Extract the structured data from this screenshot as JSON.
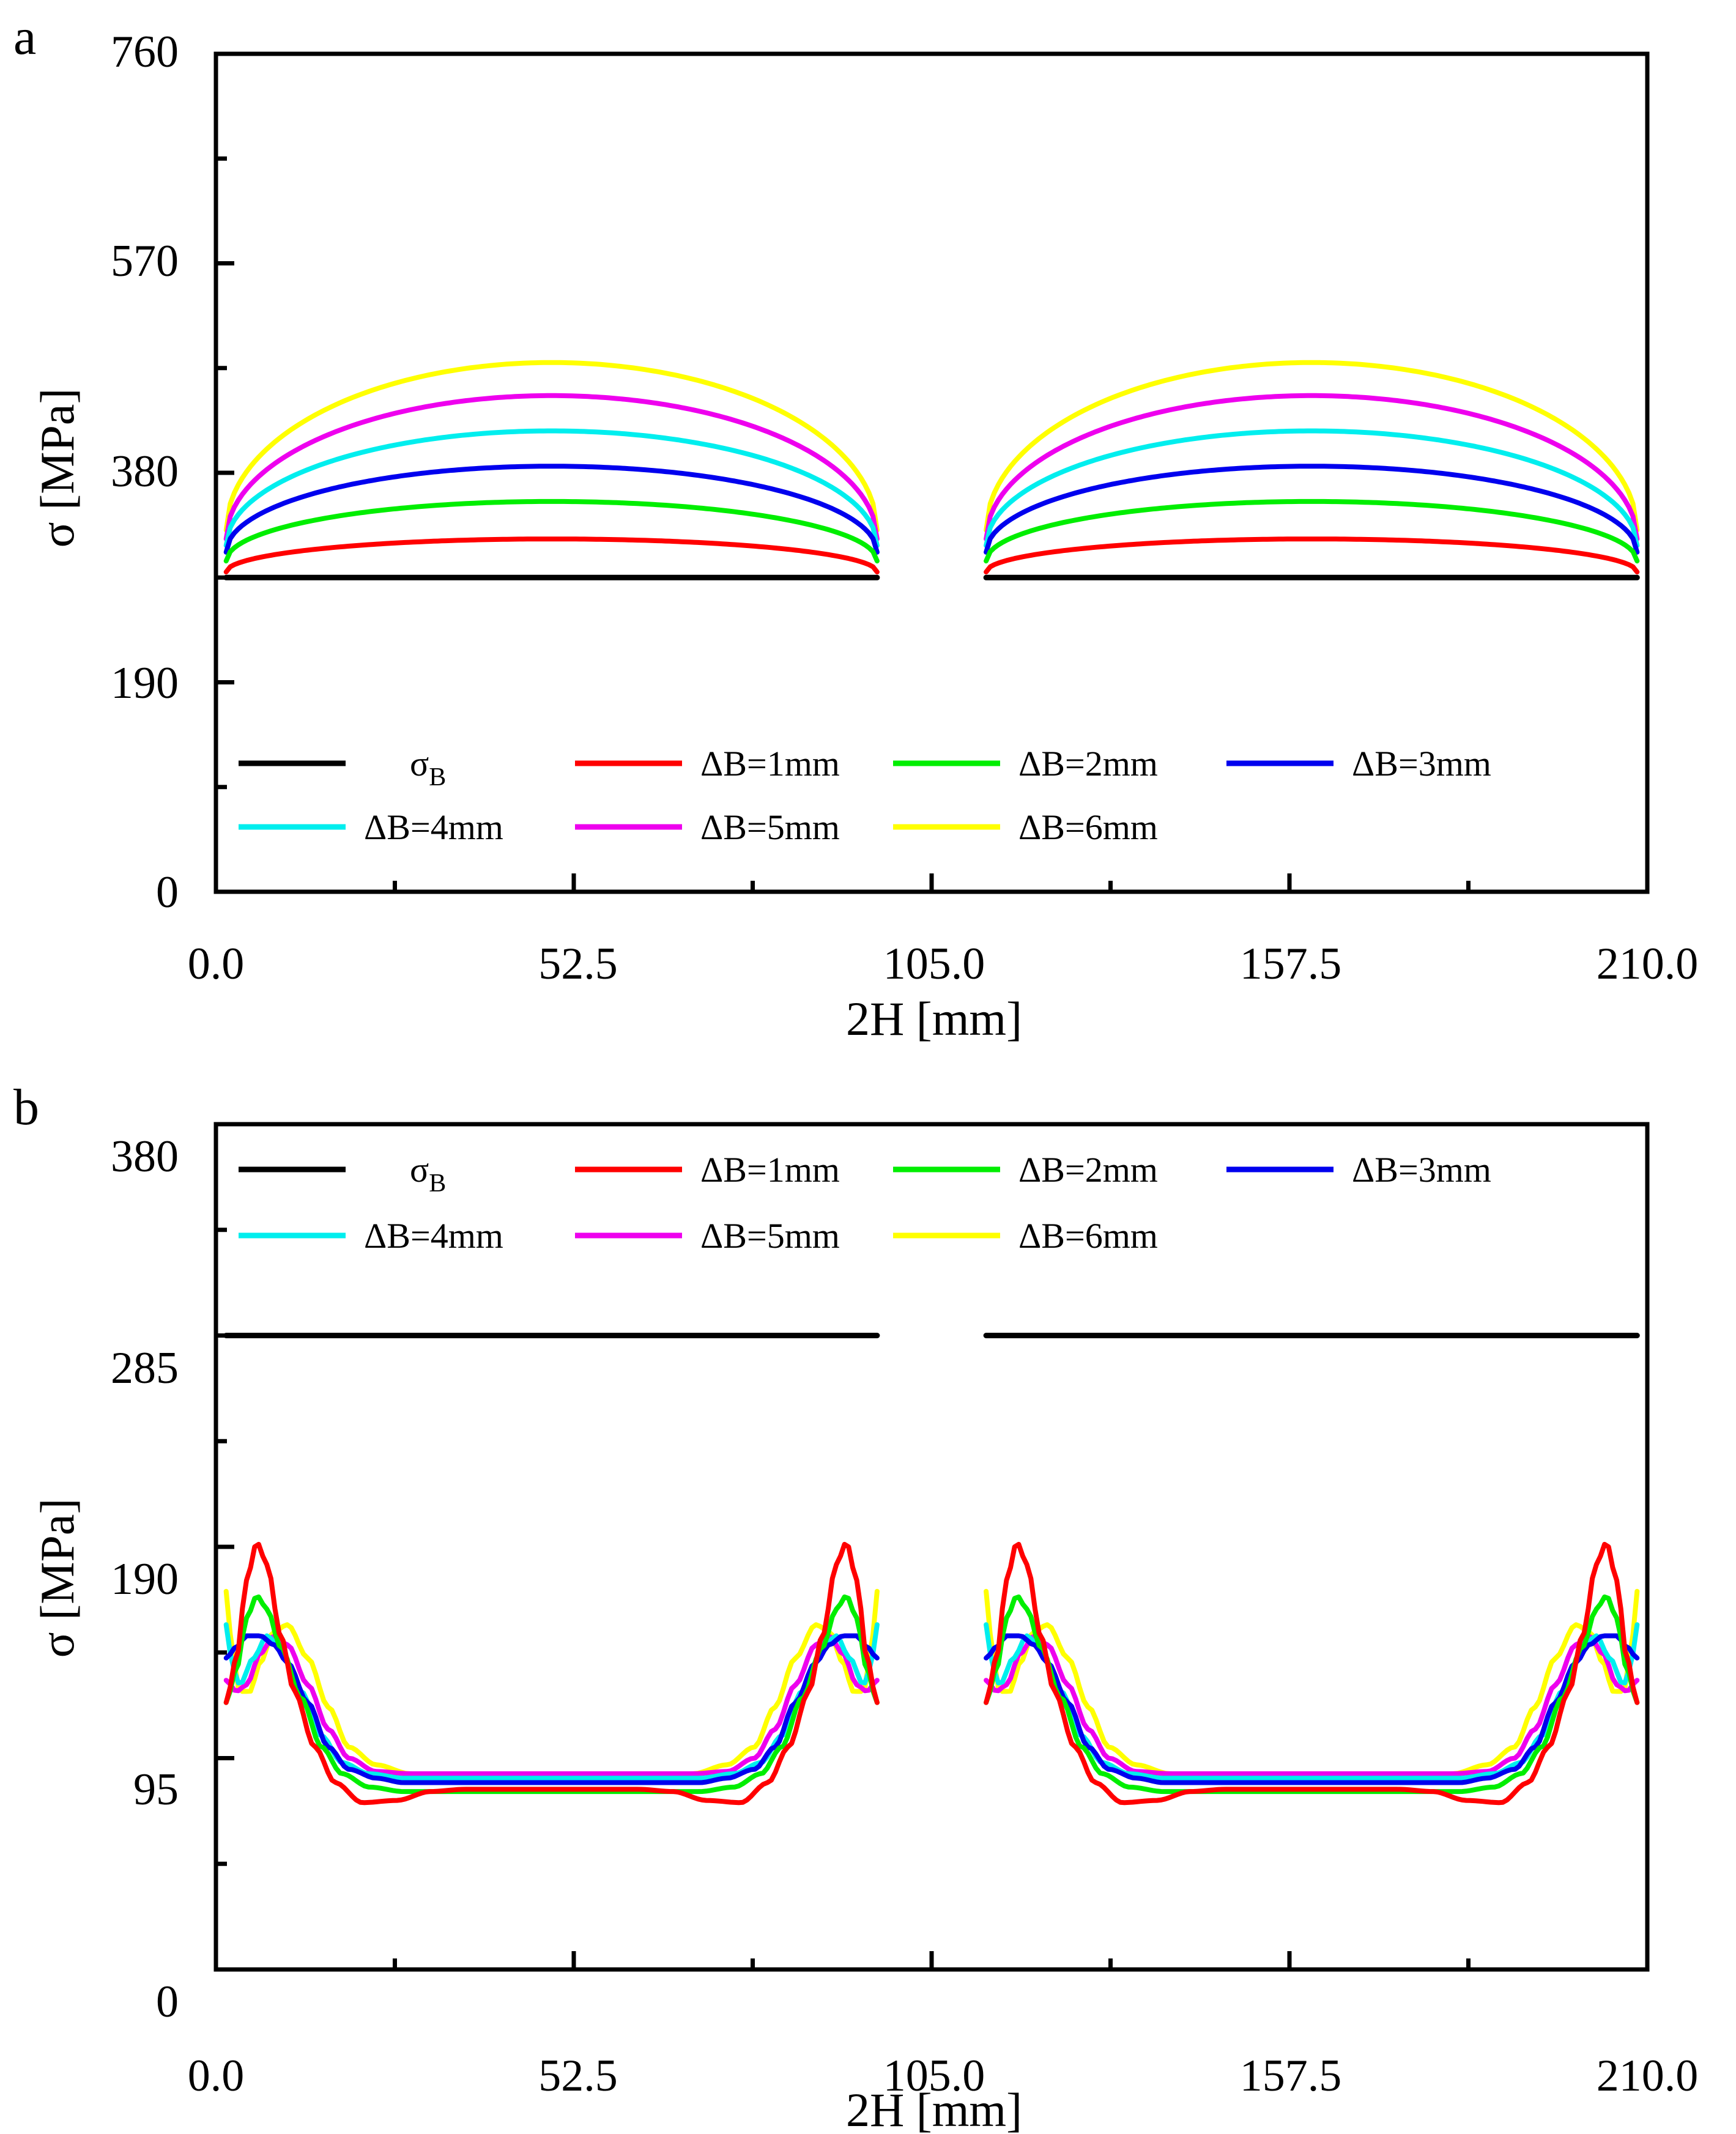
{
  "chart_data": [
    {
      "panel_label": "a",
      "type": "line",
      "xlabel": "2H [mm]",
      "ylabel": "σ [MPa]",
      "xlim": [
        0,
        210
      ],
      "ylim": [
        0,
        760
      ],
      "xticks": [
        "0.0",
        "52.5",
        "105.0",
        "157.5",
        "210.0"
      ],
      "yticks": [
        "0",
        "190",
        "380",
        "570",
        "760"
      ],
      "legend": {
        "position": "bottom",
        "entries": [
          {
            "label": "σ",
            "sub": "B",
            "color": "#000000"
          },
          {
            "label": "ΔB=1mm",
            "color": "#ff0000"
          },
          {
            "label": "ΔB=2mm",
            "color": "#00ee00"
          },
          {
            "label": "ΔB=3mm",
            "color": "#0000ee"
          },
          {
            "label": "ΔB=4mm",
            "color": "#00eeee"
          },
          {
            "label": "ΔB=5mm",
            "color": "#ee00ee"
          },
          {
            "label": "ΔB=6mm",
            "color": "#ffff00"
          }
        ]
      },
      "segments": [
        [
          1.5,
          97
        ],
        [
          113,
          208.5
        ]
      ],
      "series": [
        {
          "name": "σB",
          "color": "#000000",
          "shape": "flat",
          "y": 285
        },
        {
          "name": "ΔB=1mm",
          "color": "#ff0000",
          "shape": "arch",
          "edge": 290,
          "peak": 320
        },
        {
          "name": "ΔB=2mm",
          "color": "#00ee00",
          "shape": "arch",
          "edge": 300,
          "peak": 354
        },
        {
          "name": "ΔB=3mm",
          "color": "#0000ee",
          "shape": "arch",
          "edge": 308,
          "peak": 386
        },
        {
          "name": "ΔB=4mm",
          "color": "#00eeee",
          "shape": "arch",
          "edge": 314,
          "peak": 418
        },
        {
          "name": "ΔB=5mm",
          "color": "#ee00ee",
          "shape": "arch",
          "edge": 320,
          "peak": 450
        },
        {
          "name": "ΔB=6mm",
          "color": "#ffff00",
          "shape": "arch",
          "edge": 328,
          "peak": 480
        }
      ]
    },
    {
      "panel_label": "b",
      "type": "line",
      "xlabel": "2H [mm]",
      "ylabel": "σ [MPa]",
      "xlim": [
        0,
        210
      ],
      "ylim": [
        0,
        380
      ],
      "xticks": [
        "0.0",
        "52.5",
        "105.0",
        "157.5",
        "210.0"
      ],
      "yticks": [
        "0",
        "95",
        "190",
        "285",
        "380"
      ],
      "legend": {
        "position": "top",
        "entries": [
          {
            "label": "σ",
            "sub": "B",
            "color": "#000000"
          },
          {
            "label": "ΔB=1mm",
            "color": "#ff0000"
          },
          {
            "label": "ΔB=2mm",
            "color": "#00ee00"
          },
          {
            "label": "ΔB=3mm",
            "color": "#0000ee"
          },
          {
            "label": "ΔB=4mm",
            "color": "#00eeee"
          },
          {
            "label": "ΔB=5mm",
            "color": "#ee00ee"
          },
          {
            "label": "ΔB=6mm",
            "color": "#ffff00"
          }
        ]
      },
      "segments": [
        [
          1.5,
          97
        ],
        [
          113,
          208.5
        ]
      ],
      "series": [
        {
          "name": "σB",
          "color": "#000000",
          "shape": "flat",
          "y": 285
        },
        {
          "name": "ΔB=1mm",
          "color": "#ff0000",
          "shape": "profile",
          "points": [
            [
              0,
              120
            ],
            [
              1.5,
              140
            ],
            [
              3,
              175
            ],
            [
              4.5,
              192
            ],
            [
              6,
              182
            ],
            [
              8,
              150
            ],
            [
              10,
              125
            ],
            [
              13,
              100
            ],
            [
              16,
              84
            ],
            [
              20,
              75
            ],
            [
              25,
              76
            ],
            [
              30,
              80
            ],
            [
              35,
              81
            ],
            [
              48,
              81
            ]
          ]
        },
        {
          "name": "ΔB=2mm",
          "color": "#00ee00",
          "shape": "profile",
          "points": [
            [
              0,
              120
            ],
            [
              1.5,
              135
            ],
            [
              3,
              158
            ],
            [
              4.5,
              168
            ],
            [
              6,
              162
            ],
            [
              8,
              145
            ],
            [
              11,
              122
            ],
            [
              14,
              100
            ],
            [
              17,
              88
            ],
            [
              21,
              82
            ],
            [
              26,
              80
            ],
            [
              48,
              80
            ]
          ]
        },
        {
          "name": "ΔB=3mm",
          "color": "#0000ee",
          "shape": "profile",
          "points": [
            [
              0,
              140
            ],
            [
              1.5,
              145
            ],
            [
              3,
              150
            ],
            [
              5,
              150
            ],
            [
              7,
              146
            ],
            [
              9,
              138
            ],
            [
              12,
              120
            ],
            [
              15,
              100
            ],
            [
              18,
              90
            ],
            [
              22,
              86
            ],
            [
              26,
              84
            ],
            [
              48,
              84
            ]
          ]
        },
        {
          "name": "ΔB=4mm",
          "color": "#00eeee",
          "shape": "profile",
          "points": [
            [
              0,
              155
            ],
            [
              1,
              135
            ],
            [
              2,
              128
            ],
            [
              4,
              140
            ],
            [
              6,
              150
            ],
            [
              8,
              144
            ],
            [
              11,
              125
            ],
            [
              14,
              105
            ],
            [
              17,
              93
            ],
            [
              21,
              88
            ],
            [
              26,
              86
            ],
            [
              48,
              86
            ]
          ]
        },
        {
          "name": "ΔB=5mm",
          "color": "#ee00ee",
          "shape": "profile",
          "points": [
            [
              0,
              130
            ],
            [
              1.5,
              125
            ],
            [
              3,
              128
            ],
            [
              5,
              142
            ],
            [
              7,
              150
            ],
            [
              9,
              146
            ],
            [
              12,
              128
            ],
            [
              15,
              108
            ],
            [
              18,
              95
            ],
            [
              22,
              89
            ],
            [
              27,
              88
            ],
            [
              48,
              88
            ]
          ]
        },
        {
          "name": "ΔB=6mm",
          "color": "#ffff00",
          "shape": "profile",
          "points": [
            [
              0,
              170
            ],
            [
              1,
              140
            ],
            [
              2,
              125
            ],
            [
              3.5,
              125
            ],
            [
              5,
              138
            ],
            [
              7,
              152
            ],
            [
              9,
              155
            ],
            [
              12,
              140
            ],
            [
              15,
              118
            ],
            [
              18,
              100
            ],
            [
              22,
              92
            ],
            [
              27,
              88
            ],
            [
              48,
              87
            ]
          ]
        }
      ]
    }
  ]
}
